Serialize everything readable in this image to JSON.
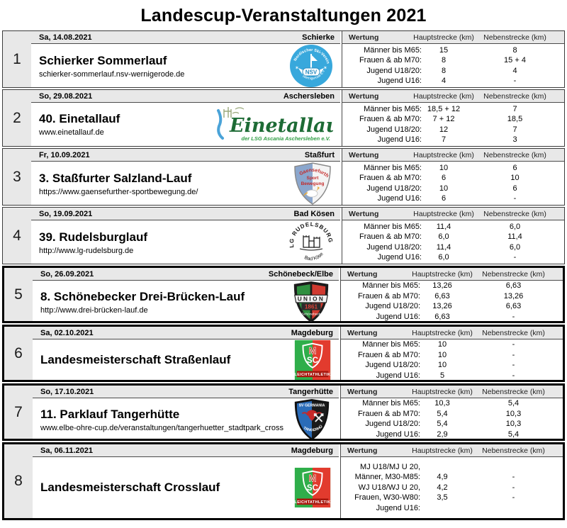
{
  "title": "Landescup-Veranstaltungen 2021",
  "wertung_header": {
    "wertung": "Wertung",
    "haupt": "Hauptstrecke (km)",
    "neben": "Nebenstrecke (km)"
  },
  "rows": [
    {
      "num": "1",
      "date": "Sa, 14.08.2021",
      "location": "Schierke",
      "event": "Schierker Sommerlauf",
      "url": "schierker-sommerlauf.nsv-wernigerode.de",
      "logo_text": {
        "arc_top": "Nordischer Ski-Verein",
        "main": "NSV",
        "arc_bottom": "Wernigerode e.V."
      },
      "wertung": [
        {
          "cat": "Männer bis M65:",
          "haupt": "15",
          "neben": "8"
        },
        {
          "cat": "Frauen & ab M70:",
          "haupt": "8",
          "neben": "15 + 4"
        },
        {
          "cat": "Jugend U18/20:",
          "haupt": "8",
          "neben": "4"
        },
        {
          "cat": "Jugend U16:",
          "haupt": "4",
          "neben": "-"
        }
      ]
    },
    {
      "num": "2",
      "date": "So, 29.08.2021",
      "location": "Aschersleben",
      "event": "40. Einetallauf",
      "url": "www.einetallauf.de",
      "logo_text": {
        "main": "Einetallauf",
        "sub": "der LSG Ascania Aschersleben e.V."
      },
      "wertung": [
        {
          "cat": "Männer bis M65:",
          "haupt": "18,5 + 12",
          "neben": "7"
        },
        {
          "cat": "Frauen & ab M70:",
          "haupt": "7 + 12",
          "neben": "18,5"
        },
        {
          "cat": "Jugend U18/20:",
          "haupt": "12",
          "neben": "7"
        },
        {
          "cat": "Jugend U16:",
          "haupt": "7",
          "neben": "3"
        }
      ]
    },
    {
      "num": "3",
      "date": "Fr, 10.09.2021",
      "location": "Staßfurt",
      "event": "3. Staßfurter Salzland-Lauf",
      "url": "https://www.gaensefurther-sportbewegung.de/",
      "logo_text": {
        "arc_top": "Gaensefurther",
        "line1": "Sport",
        "line2": "Bewegung"
      },
      "wertung": [
        {
          "cat": "Männer bis M65:",
          "haupt": "10",
          "neben": "6"
        },
        {
          "cat": "Frauen & ab M70:",
          "haupt": "6",
          "neben": "10"
        },
        {
          "cat": "Jugend U18/20:",
          "haupt": "10",
          "neben": "6"
        },
        {
          "cat": "Jugend U16:",
          "haupt": "6",
          "neben": "-"
        }
      ]
    },
    {
      "num": "4",
      "date": "So, 19.09.2021",
      "location": "Bad Kösen",
      "event": "39. Rudelsburglauf",
      "url": "http://www.lg-rudelsburg.de",
      "logo_text": {
        "arc_top": "LG RUDELSBURG",
        "arc_bottom": "Bad Kösen"
      },
      "wertung": [
        {
          "cat": "Männer bis M65:",
          "haupt": "11,4",
          "neben": "6,0"
        },
        {
          "cat": "Frauen & ab M70:",
          "haupt": "6,0",
          "neben": "11,4"
        },
        {
          "cat": "Jugend U18/20:",
          "haupt": "11,4",
          "neben": "6,0"
        },
        {
          "cat": "Jugend U16:",
          "haupt": "6,0",
          "neben": "-"
        }
      ]
    },
    {
      "num": "5",
      "date": "So, 26.09.2021",
      "location": "Schönebeck/Elbe",
      "event": "8. Schönebecker Drei-Brücken-Lauf",
      "url": "http://www.drei-brücken-lauf.de",
      "logo_text": {
        "main": "UNION",
        "year": "1861",
        "sub": "Schönebeck"
      },
      "wertung": [
        {
          "cat": "Männer bis M65:",
          "haupt": "13,26",
          "neben": "6,63"
        },
        {
          "cat": "Frauen & ab M70:",
          "haupt": "6,63",
          "neben": "13,26"
        },
        {
          "cat": "Jugend U18/20:",
          "haupt": "13,26",
          "neben": "6,63"
        },
        {
          "cat": "Jugend U16:",
          "haupt": "6,63",
          "neben": "-"
        }
      ]
    },
    {
      "num": "6",
      "date": "Sa, 02.10.2021",
      "location": "Magdeburg",
      "event": "Landesmeisterschaft Straßenlauf",
      "logo_text": {
        "m": "M",
        "main": "SC",
        "sub": "LEICHTATHLETIK"
      },
      "wertung": [
        {
          "cat": "Männer bis M65:",
          "haupt": "10",
          "neben": "-"
        },
        {
          "cat": "Frauen & ab M70:",
          "haupt": "10",
          "neben": "-"
        },
        {
          "cat": "Jugend U18/20:",
          "haupt": "10",
          "neben": "-"
        },
        {
          "cat": "Jugend U16:",
          "haupt": "5",
          "neben": "-"
        }
      ]
    },
    {
      "num": "7",
      "date": "So, 17.10.2021",
      "location": "Tangerhütte",
      "event": "11. Parklauf Tangerhütte",
      "url": "www.elbe-ohre-cup.de/veranstaltungen/tangerhuetter_stadtpark_cross",
      "logo_text": {
        "top": "SV GERMANIA",
        "arc_bottom": "TANGERHÜTTE"
      },
      "wertung": [
        {
          "cat": "Männer bis M65:",
          "haupt": "10,3",
          "neben": "5,4"
        },
        {
          "cat": "Frauen & ab M70:",
          "haupt": "5,4",
          "neben": "10,3"
        },
        {
          "cat": "Jugend U18/20:",
          "haupt": "5,4",
          "neben": "10,3"
        },
        {
          "cat": "Jugend U16:",
          "haupt": "2,9",
          "neben": "5,4"
        }
      ]
    },
    {
      "num": "8",
      "date": "Sa, 06.11.2021",
      "location": "Magdeburg",
      "event": "Landesmeisterschaft Crosslauf",
      "logo_text": {
        "m": "M",
        "main": "SC",
        "sub": "LEICHTATHLETIK"
      },
      "wertung": [
        {
          "cat": "MJ U18/MJ U 20,",
          "haupt": "",
          "neben": ""
        },
        {
          "cat": "Männer, M30-M85:",
          "haupt": "4,9",
          "neben": "-"
        },
        {
          "cat": "WJ U18/WJ U 20,",
          "haupt": "4,2",
          "neben": "-"
        },
        {
          "cat": "Frauen, W30-W80:",
          "haupt": "3,5",
          "neben": "-"
        },
        {
          "cat": "Jugend U16:",
          "haupt": "",
          "neben": ""
        }
      ]
    }
  ],
  "colors": {
    "strip_gray": "#e8e8e8",
    "nsv_blue": "#38a8dc",
    "einetal_green": "#1d6b35",
    "gaensefurther_blue": "#8aa6cd",
    "union_green": "#2f8f3f",
    "union_red": "#d03a30",
    "scm_green": "#2fae4a",
    "scm_red": "#e23b2e",
    "germania_blue": "#2b6cb8"
  }
}
